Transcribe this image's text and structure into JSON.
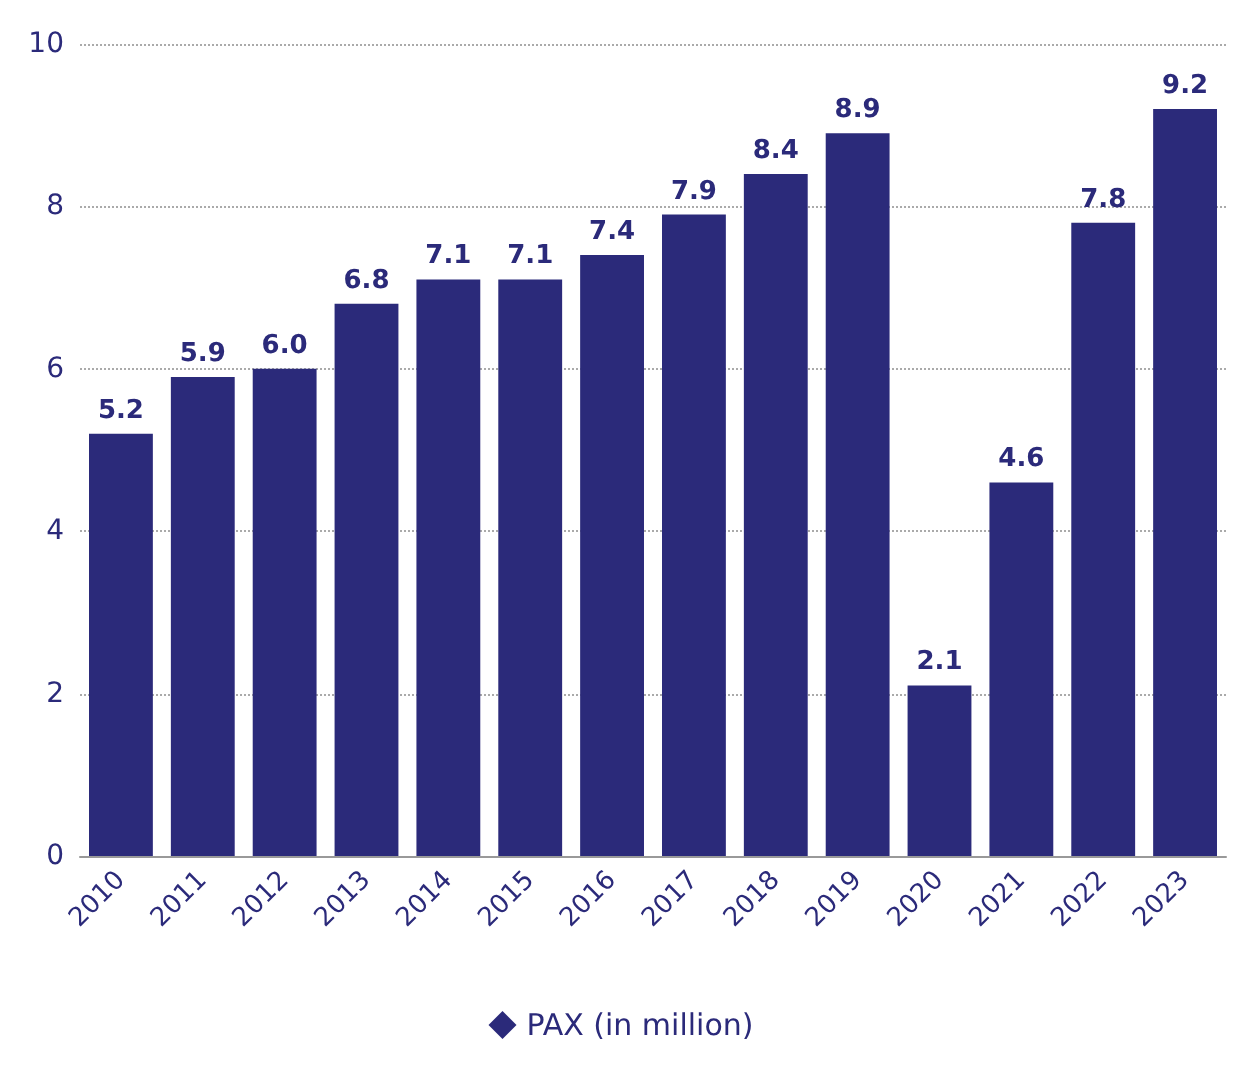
{
  "chart_data": {
    "type": "bar",
    "categories": [
      "2010",
      "2011",
      "2012",
      "2013",
      "2014",
      "2015",
      "2016",
      "2017",
      "2018",
      "2019",
      "2020",
      "2021",
      "2022",
      "2023"
    ],
    "series": [
      {
        "name": "PAX (in million)",
        "color": "#2b2a7a",
        "values": [
          5.2,
          5.9,
          6.0,
          6.8,
          7.1,
          7.1,
          7.4,
          7.9,
          8.4,
          8.9,
          2.1,
          4.6,
          7.8,
          9.2
        ],
        "value_labels": [
          "5.2",
          "5.9",
          "6.0",
          "6.8",
          "7.1",
          "7.1",
          "7.4",
          "7.9",
          "8.4",
          "8.9",
          "2.1",
          "4.6",
          "7.8",
          "9.2"
        ]
      }
    ],
    "ylim": [
      0,
      10
    ],
    "yticks": [
      0,
      2,
      4,
      6,
      8,
      10
    ],
    "grid": "y",
    "legend": "bottom"
  }
}
